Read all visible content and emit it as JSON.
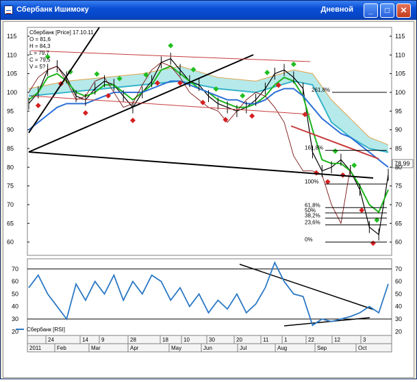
{
  "window": {
    "title": "Сбербанк Ишимоку",
    "timeframe": "Дневной",
    "min_icon": "minimize-icon",
    "max_icon": "maximize-icon",
    "close_icon": "close-icon"
  },
  "price_panel": {
    "info_lines": [
      "Сбербанк [Price] 17.10.11",
      "O = 81,6",
      "H = 84,3",
      "L = 79,7",
      "C = 79,5",
      "V = 5?"
    ],
    "last_price": "78,99",
    "fib_labels": [
      "261,8%",
      "161,8%",
      "100%",
      "61,8%",
      "50%",
      "38,2%",
      "23,6%",
      "0%"
    ],
    "colors": {
      "tenkan": "#1ab51a",
      "kijun": "#2b6fd8",
      "cloud": "#7ad7d7",
      "lagging": "#7a1212",
      "buy_marker": "#1fbf1f",
      "sell_marker": "#d42020",
      "trendline": "#000000",
      "channel_red": "#c83a3a"
    }
  },
  "rsi_panel": {
    "legend": "Сбербанк [RSI]",
    "color": "#2a78c4"
  },
  "chart_data": [
    {
      "type": "line",
      "name": "price",
      "ylim": [
        57,
        117
      ],
      "yticks": [
        60,
        65,
        70,
        75,
        80,
        85,
        90,
        95,
        100,
        105,
        110,
        115
      ],
      "xlim": [
        0,
        190
      ],
      "x": [
        0,
        5,
        10,
        15,
        20,
        25,
        30,
        35,
        40,
        45,
        50,
        55,
        60,
        65,
        70,
        75,
        80,
        85,
        90,
        95,
        100,
        105,
        110,
        115,
        120,
        125,
        130,
        135,
        140,
        145,
        150,
        155,
        160,
        165,
        170,
        175,
        180,
        185,
        190
      ],
      "series": [
        {
          "name": "price",
          "values": [
            97,
            100,
            106,
            107,
            104,
            99,
            98,
            101,
            103,
            102,
            99,
            96,
            100,
            103,
            108,
            109,
            106,
            103,
            102,
            99,
            97,
            96,
            95,
            96,
            98,
            101,
            105,
            106,
            104,
            101,
            84,
            79,
            80,
            82,
            79,
            74,
            64,
            62,
            78
          ]
        },
        {
          "name": "tenkan",
          "values": [
            98,
            100,
            104,
            105,
            103,
            100,
            99,
            100,
            102,
            102,
            100,
            98,
            100,
            102,
            106,
            107,
            105,
            103,
            101,
            100,
            98,
            97,
            96,
            96,
            97,
            99,
            102,
            104,
            103,
            99,
            90,
            82,
            81,
            81,
            79,
            75,
            70,
            68,
            74
          ]
        },
        {
          "name": "kijun",
          "values": [
            90,
            92,
            94,
            96,
            97,
            97,
            97,
            98,
            99,
            100,
            100,
            100,
            100,
            101,
            102,
            103,
            103,
            102,
            101,
            100,
            99,
            98,
            98,
            97,
            97,
            98,
            100,
            101,
            101,
            99,
            96,
            93,
            91,
            89,
            88,
            86,
            84,
            82,
            80
          ]
        },
        {
          "name": "lagging",
          "values": [
            100,
            104,
            106,
            107,
            103,
            98,
            99,
            103,
            104,
            100,
            96,
            97,
            102,
            106,
            108,
            107,
            104,
            100,
            98,
            96,
            95,
            92,
            95,
            98,
            100,
            99,
            96,
            92,
            83,
            79,
            79,
            78,
            70,
            65,
            80,
            null,
            null,
            null,
            null
          ]
        }
      ],
      "cloud": {
        "x": [
          0,
          20,
          40,
          60,
          80,
          100,
          120,
          140,
          150,
          160,
          170,
          180,
          190
        ],
        "upper": [
          101,
          103,
          104,
          105,
          107,
          104,
          103,
          106,
          105,
          98,
          93,
          88,
          86
        ],
        "lower": [
          99,
          100,
          101,
          102,
          103,
          101,
          100,
          103,
          102,
          92,
          88,
          85,
          84
        ]
      },
      "markers_buy_x": [
        10,
        22,
        36,
        48,
        62,
        75,
        87,
        99,
        113,
        126,
        140,
        162,
        172,
        184
      ],
      "markers_sell_x": [
        5,
        17,
        30,
        42,
        55,
        68,
        80,
        92,
        104,
        118,
        132,
        146,
        152,
        158,
        166,
        176,
        182
      ]
    },
    {
      "type": "line",
      "name": "RSI",
      "ylim": [
        18,
        77
      ],
      "yticks": [
        20,
        30,
        40,
        50,
        60,
        70
      ],
      "levels": [
        30,
        70
      ],
      "x": [
        0,
        5,
        10,
        15,
        20,
        25,
        30,
        35,
        40,
        45,
        50,
        55,
        60,
        65,
        70,
        75,
        80,
        85,
        90,
        95,
        100,
        105,
        110,
        115,
        120,
        125,
        130,
        135,
        140,
        145,
        150,
        155,
        160,
        165,
        170,
        175,
        180,
        185,
        190
      ],
      "values": [
        55,
        65,
        50,
        40,
        30,
        58,
        45,
        60,
        50,
        65,
        45,
        60,
        50,
        65,
        60,
        45,
        55,
        40,
        50,
        35,
        45,
        38,
        50,
        35,
        42,
        55,
        75,
        60,
        50,
        48,
        25,
        30,
        28,
        30,
        32,
        35,
        40,
        35,
        58
      ]
    }
  ],
  "x_axis": {
    "tick_labels": [
      "24",
      "14",
      "9",
      "28",
      "18",
      "10",
      "30",
      "20",
      "11",
      "1",
      "22",
      "12",
      "3"
    ],
    "month_labels": [
      "2011",
      "Feb",
      "Mar",
      "Apr",
      "May",
      "Jun",
      "Jul",
      "Aug",
      "Sep",
      "Oct"
    ]
  }
}
